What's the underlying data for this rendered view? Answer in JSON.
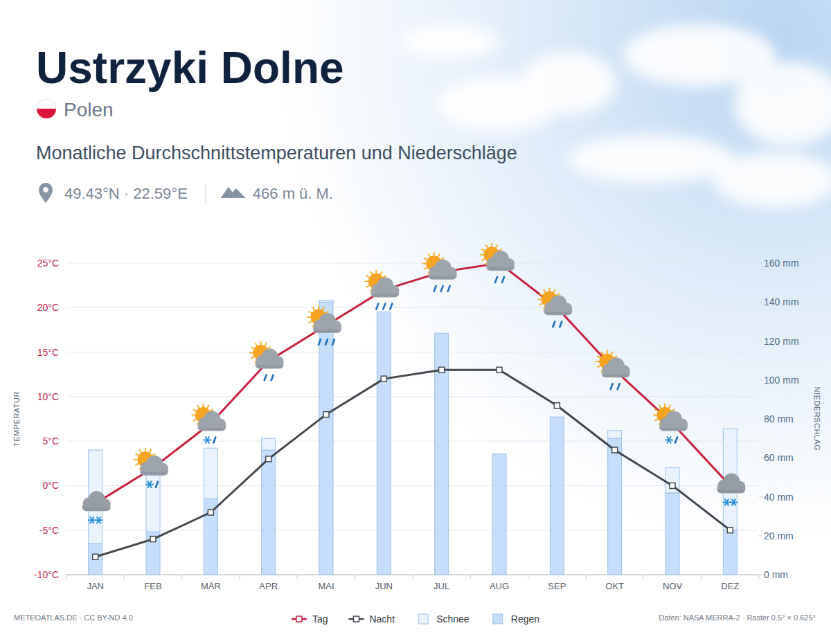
{
  "header": {
    "title": "Ustrzyki Dolne",
    "country": "Polen",
    "subtitle": "Monatliche Durchschnittstemperaturen und Niederschläge",
    "coordinates": "49.43°N · 22.59°E",
    "elevation": "466 m ü. M."
  },
  "footer": {
    "credit": "METEOATLAS.DE · CC BY-ND 4.0",
    "source": "Daten: NASA MERRA-2 · Raster 0.5° × 0.625°"
  },
  "chart_data": {
    "type": "bar",
    "title": "Ustrzyki Dolne",
    "subtitle": "Monatliche Durchschnittstemperaturen und Niederschläge",
    "categories": [
      "JAN",
      "FEB",
      "MÄR",
      "APR",
      "MAI",
      "JUN",
      "JUL",
      "AUG",
      "SEP",
      "OKT",
      "NOV",
      "DEZ"
    ],
    "ylabel": "TEMPERATUR",
    "y2label": "NIEDERSCHLAG",
    "ylim": [
      -10,
      25
    ],
    "yticks": [
      {
        "value": -10,
        "label": "-10°C"
      },
      {
        "value": -5,
        "label": "-5°C"
      },
      {
        "value": 0,
        "label": "0°C"
      },
      {
        "value": 5,
        "label": "5°C"
      },
      {
        "value": 10,
        "label": "10°C"
      },
      {
        "value": 15,
        "label": "15°C"
      },
      {
        "value": 20,
        "label": "20°C"
      },
      {
        "value": 25,
        "label": "25°C"
      }
    ],
    "y2lim": [
      0,
      160
    ],
    "y2ticks": [
      {
        "value": 0,
        "label": "0 mm"
      },
      {
        "value": 20,
        "label": "20 mm"
      },
      {
        "value": 40,
        "label": "40 mm"
      },
      {
        "value": 60,
        "label": "60 mm"
      },
      {
        "value": 80,
        "label": "80 mm"
      },
      {
        "value": 100,
        "label": "100 mm"
      },
      {
        "value": 120,
        "label": "120 mm"
      },
      {
        "value": 140,
        "label": "140 mm"
      },
      {
        "value": 160,
        "label": "160 mm"
      }
    ],
    "grid": true,
    "stacked": true,
    "legend": "bottom",
    "series": [
      {
        "name": "Tag",
        "type": "line",
        "color": "#c8203f",
        "marker": "square",
        "line_style": "solid",
        "values": [
          -2,
          2,
          7,
          14,
          18,
          22,
          24,
          25,
          20,
          13,
          7,
          0
        ]
      },
      {
        "name": "Nacht",
        "type": "line",
        "color": "#44484e",
        "marker": "square",
        "line_style": "solid",
        "values": [
          -8,
          -6,
          -3,
          3,
          8,
          12,
          13,
          13,
          9,
          4,
          0,
          -5
        ]
      },
      {
        "name": "Schnee",
        "type": "bar",
        "axis": "y2",
        "color": "#eaf3fd",
        "values": [
          48,
          38,
          26,
          6,
          1,
          0,
          0,
          0,
          0,
          4,
          13,
          52
        ]
      },
      {
        "name": "Regen",
        "type": "bar",
        "axis": "y2",
        "color": "#c6ddfb",
        "values": [
          16,
          22,
          39,
          64,
          140,
          135,
          124,
          62,
          81,
          70,
          42,
          23
        ]
      }
    ]
  }
}
